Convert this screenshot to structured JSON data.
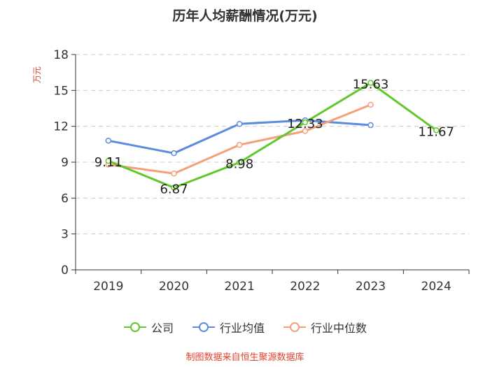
{
  "chart_data": {
    "type": "line",
    "title": "历年人均薪酬情况(万元)",
    "ylabel": "万元",
    "xlabel": "",
    "categories": [
      "2019",
      "2020",
      "2021",
      "2022",
      "2023",
      "2024"
    ],
    "ylim": [
      0,
      18
    ],
    "yticks": [
      0,
      3,
      6,
      9,
      12,
      15,
      18
    ],
    "grid": true,
    "legend_position": "bottom",
    "series": [
      {
        "name": "公司",
        "color": "#5fc82a",
        "values": [
          9.11,
          6.87,
          8.98,
          12.33,
          15.63,
          11.67
        ],
        "labels": [
          "9.11",
          "6.87",
          "8.98",
          "12.33",
          "15.63",
          "11.67"
        ]
      },
      {
        "name": "行业均值",
        "color": "#5b8be0",
        "values": [
          10.8,
          9.75,
          12.2,
          12.5,
          12.1,
          null
        ]
      },
      {
        "name": "行业中位数",
        "color": "#f5a079",
        "values": [
          8.8,
          8.05,
          10.45,
          11.6,
          13.8,
          null
        ]
      }
    ]
  },
  "source_note": "制图数据来自恒生聚源数据库",
  "colors": {
    "source": "#e0412b",
    "ylabel": "#e0412b",
    "axis": "#333333",
    "grid": "#cccccc"
  }
}
